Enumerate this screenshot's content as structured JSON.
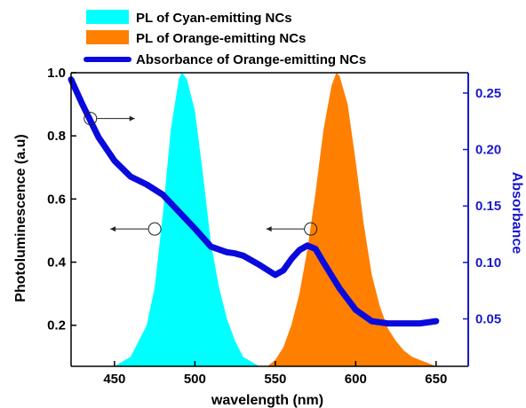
{
  "chart_data": {
    "type": "area",
    "title": "",
    "xlabel": "wavelength (nm)",
    "ylabel": "Photoluminescence (a.u)",
    "y2label": "Absorbance",
    "xlim": [
      423,
      670
    ],
    "ylim": [
      0.07,
      1.0
    ],
    "y2lim": [
      0.008,
      0.268
    ],
    "xticks": [
      "450",
      "500",
      "550",
      "600",
      "650"
    ],
    "yticks": [
      "0.2",
      "0.4",
      "0.6",
      "0.8",
      "1.0"
    ],
    "y2ticks": [
      "0.05",
      "0.10",
      "0.15",
      "0.20",
      "0.25"
    ],
    "grid": false,
    "legend_position": "top-left",
    "series": [
      {
        "name": "PL of Cyan-emitting NCs",
        "type": "area",
        "axis": "left",
        "color": "#00ffff",
        "x": [
          450,
          460,
          470,
          475,
          480,
          485,
          490,
          492,
          495,
          500,
          505,
          510,
          515,
          520,
          525,
          530,
          540
        ],
        "y": [
          0.07,
          0.1,
          0.2,
          0.32,
          0.55,
          0.82,
          0.98,
          1.0,
          0.98,
          0.88,
          0.68,
          0.46,
          0.32,
          0.22,
          0.15,
          0.1,
          0.07
        ]
      },
      {
        "name": "PL of Orange-emitting NCs",
        "type": "area",
        "axis": "left",
        "color": "#ff7f00",
        "x": [
          545,
          550,
          555,
          560,
          565,
          570,
          575,
          580,
          585,
          588,
          590,
          595,
          600,
          605,
          610,
          615,
          620,
          625,
          630,
          635,
          640,
          645,
          650
        ],
        "y": [
          0.07,
          0.09,
          0.13,
          0.2,
          0.3,
          0.44,
          0.62,
          0.82,
          0.96,
          1.0,
          0.99,
          0.9,
          0.72,
          0.52,
          0.36,
          0.26,
          0.19,
          0.15,
          0.12,
          0.1,
          0.09,
          0.08,
          0.07
        ]
      },
      {
        "name": "Absorbance of Orange-emitting NCs",
        "type": "line",
        "axis": "right",
        "color": "#0a0adc",
        "x": [
          423,
          430,
          440,
          450,
          460,
          470,
          480,
          490,
          500,
          510,
          520,
          525,
          530,
          540,
          550,
          555,
          560,
          565,
          570,
          575,
          580,
          590,
          600,
          610,
          620,
          630,
          640,
          650
        ],
        "y": [
          0.262,
          0.24,
          0.211,
          0.19,
          0.176,
          0.169,
          0.16,
          0.145,
          0.13,
          0.114,
          0.109,
          0.108,
          0.106,
          0.098,
          0.089,
          0.093,
          0.103,
          0.111,
          0.115,
          0.112,
          0.1,
          0.077,
          0.058,
          0.048,
          0.046,
          0.046,
          0.046,
          0.048
        ]
      }
    ]
  },
  "annotations": [
    {
      "name": "absorbance-arrow",
      "x": 435,
      "y": 0.855,
      "direction": "right"
    },
    {
      "name": "cyan-pl-arrow",
      "x": 475,
      "y": 0.505,
      "direction": "left"
    },
    {
      "name": "orange-pl-arrow",
      "x": 572,
      "y": 0.505,
      "direction": "left"
    }
  ]
}
